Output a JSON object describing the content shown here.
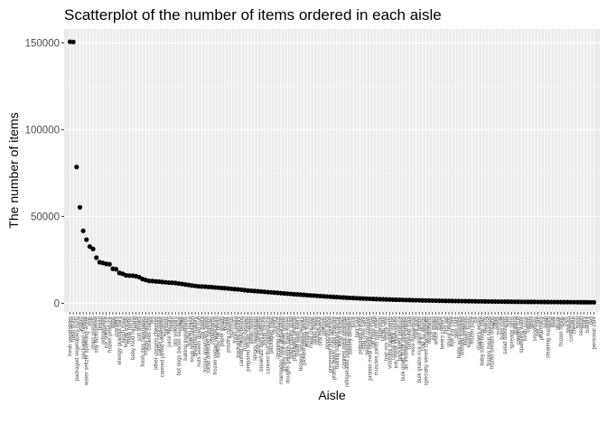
{
  "chart_data": {
    "type": "scatter",
    "title": "Scatterplot of the number of items ordered in each aisle",
    "xlabel": "Aisle",
    "ylabel": "The number of items",
    "ylim": [
      -5000,
      158000
    ],
    "y_ticks": [
      0,
      50000,
      100000,
      150000
    ],
    "y_tick_labels": [
      "0",
      "50000",
      "100000",
      "150000"
    ],
    "grid": true,
    "legend": "none",
    "colors": {
      "panel": "#ebebeb",
      "grid_major": "#ffffff",
      "grid_minor": "#f4f4f4",
      "point": "#000000",
      "tick_text": "#4d4d4d"
    },
    "categories": [
      "fresh vegetables",
      "fresh fruits",
      "packaged vegetables fruits",
      "yogurt",
      "packaged cheese",
      "water seltzer sparkling water",
      "milk",
      "chips pretzels",
      "soy lactosefree",
      "bread",
      "refrigerated",
      "ice cream ice",
      "frozen produce",
      "eggs",
      "crackers",
      "energy granola bars",
      "lunch meat",
      "frozen meals",
      "fresh herbs",
      "baby food formula",
      "cereal",
      "soft drinks",
      "fresh dips tapenades",
      "frozen breakfast",
      "cookies cakes",
      "tea",
      "other creams cheeses",
      "candy chocolate",
      "canned jarred vegetables",
      "spreads",
      "juice nectars",
      "cream",
      "oils vinegars",
      "hot dogs bacon sausage",
      "coffee",
      "baking ingredients",
      "frozen pizza",
      "soup broth bouillon",
      "breakfast bakery",
      "nuts seeds dried fruit",
      "dry pasta",
      "frozen appetizers sides",
      "salad dressing toppings",
      "condiments",
      "frozen vegan vegetarian",
      "tortillas flat bread",
      "paper goods",
      "butter",
      "poultry counter",
      "hummus",
      "fresh pasta",
      "packaged poultry",
      "canned meals beans",
      "frozen dessert",
      "prepared soups salads",
      "asian foods",
      "spices seasonings",
      "dish detergents",
      "breakfast bars pastries",
      "pasta sauce",
      "canned fruit applesauce",
      "packaged meat",
      "laundry",
      "cleaning products",
      "marinades meat preparation",
      "grains rice dried goods",
      "doughs gelatins bake mixes",
      "body lotions soap",
      "packaged seafood",
      "trash bags liners",
      "honeys syrups nectars",
      "pickled goods olives",
      "instant foods",
      "meat counter",
      "latino foods",
      "lactose free",
      "oral hygiene",
      "pretzels",
      "popcorn jerky",
      "preserved dips spreads",
      "plates bowls cups flatware",
      "baking supplies decor",
      "food storage",
      "canned meat seafood",
      "refrigerated pudding desserts",
      "bakery desserts",
      "juice",
      "hair care",
      "prepared meals",
      "dog food care",
      "seafood counter",
      "protein meal replacements",
      "cat food care",
      "muscles joints pain relief",
      "digestion",
      "facial care",
      "trail mix snack mix",
      "vitamins supplements",
      "cocoa drink mixes",
      "tofu meat alternatives",
      "packaged produce",
      "bulk dried fruits vegetables",
      "air fresheners candles",
      "feminine care",
      "more household",
      "mint gum",
      "bulk grains rice dried goods",
      "cold flu allergy",
      "specialty wines champagnes",
      "deodorants",
      "red wines",
      "white wines",
      "spirits",
      "beers coolers",
      "first aid",
      "shave needs",
      "eye ear care",
      "skin care",
      "baby accessories",
      "kitchen supplies",
      "indian foods",
      "kosher foods",
      "frozen juice",
      "ice",
      "diapers wipes",
      "baby bath body care",
      "beauty",
      "frozen meat seafood",
      "frozen breads doughs",
      "other",
      "missing",
      "buns rolls",
      "salad dressings",
      "nuts",
      "spreads jams",
      "granola",
      "canned fruit",
      "sparkling water",
      "fresh juice",
      "bagels",
      "sushi",
      "smoothies",
      "pet care",
      "pharmacy",
      "soap",
      "cleaning supplies",
      "wine",
      "beer",
      "liquor",
      "frozen foods",
      "bulk",
      "snacks",
      "condiment",
      "cheese",
      "meat",
      "seafood",
      "dairy",
      "bakery",
      "deli",
      "personal care"
    ],
    "values": [
      150609,
      150473,
      78493,
      55240,
      41699,
      36617,
      32644,
      31269,
      26240,
      23635,
      23228,
      22676,
      22453,
      19875,
      19592,
      17449,
      16957,
      16088,
      15940,
      15888,
      15578,
      15003,
      13930,
      13386,
      12853,
      12789,
      12566,
      12490,
      12245,
      12077,
      11903,
      11825,
      11667,
      11381,
      11119,
      10821,
      10546,
      10244,
      10016,
      9747,
      9639,
      9571,
      9426,
      9321,
      9102,
      8972,
      8816,
      8679,
      8497,
      8302,
      8154,
      8002,
      7801,
      7551,
      7366,
      7218,
      7054,
      6908,
      6752,
      6603,
      6432,
      6287,
      6120,
      5988,
      5823,
      5676,
      5512,
      5388,
      5231,
      5092,
      4956,
      4817,
      4678,
      4543,
      4398,
      4276,
      4139,
      4014,
      3897,
      3781,
      3650,
      3541,
      3426,
      3318,
      3207,
      3101,
      3004,
      2912,
      2823,
      2741,
      2652,
      2574,
      2496,
      2421,
      2354,
      2287,
      2219,
      2158,
      2099,
      2041,
      1986,
      1933,
      1880,
      1831,
      1782,
      1735,
      1691,
      1648,
      1606,
      1566,
      1527,
      1489,
      1452,
      1417,
      1383,
      1350,
      1318,
      1287,
      1257,
      1228,
      1200,
      1173,
      1147,
      1122,
      1098,
      1074,
      1051,
      1029,
      1007,
      986,
      966,
      946,
      927,
      908,
      890,
      872,
      855,
      838,
      822,
      806,
      791,
      776,
      761,
      747,
      733,
      720,
      706,
      693,
      681,
      669,
      657,
      645,
      634,
      623,
      612,
      602,
      592,
      582,
      573,
      564
    ]
  }
}
